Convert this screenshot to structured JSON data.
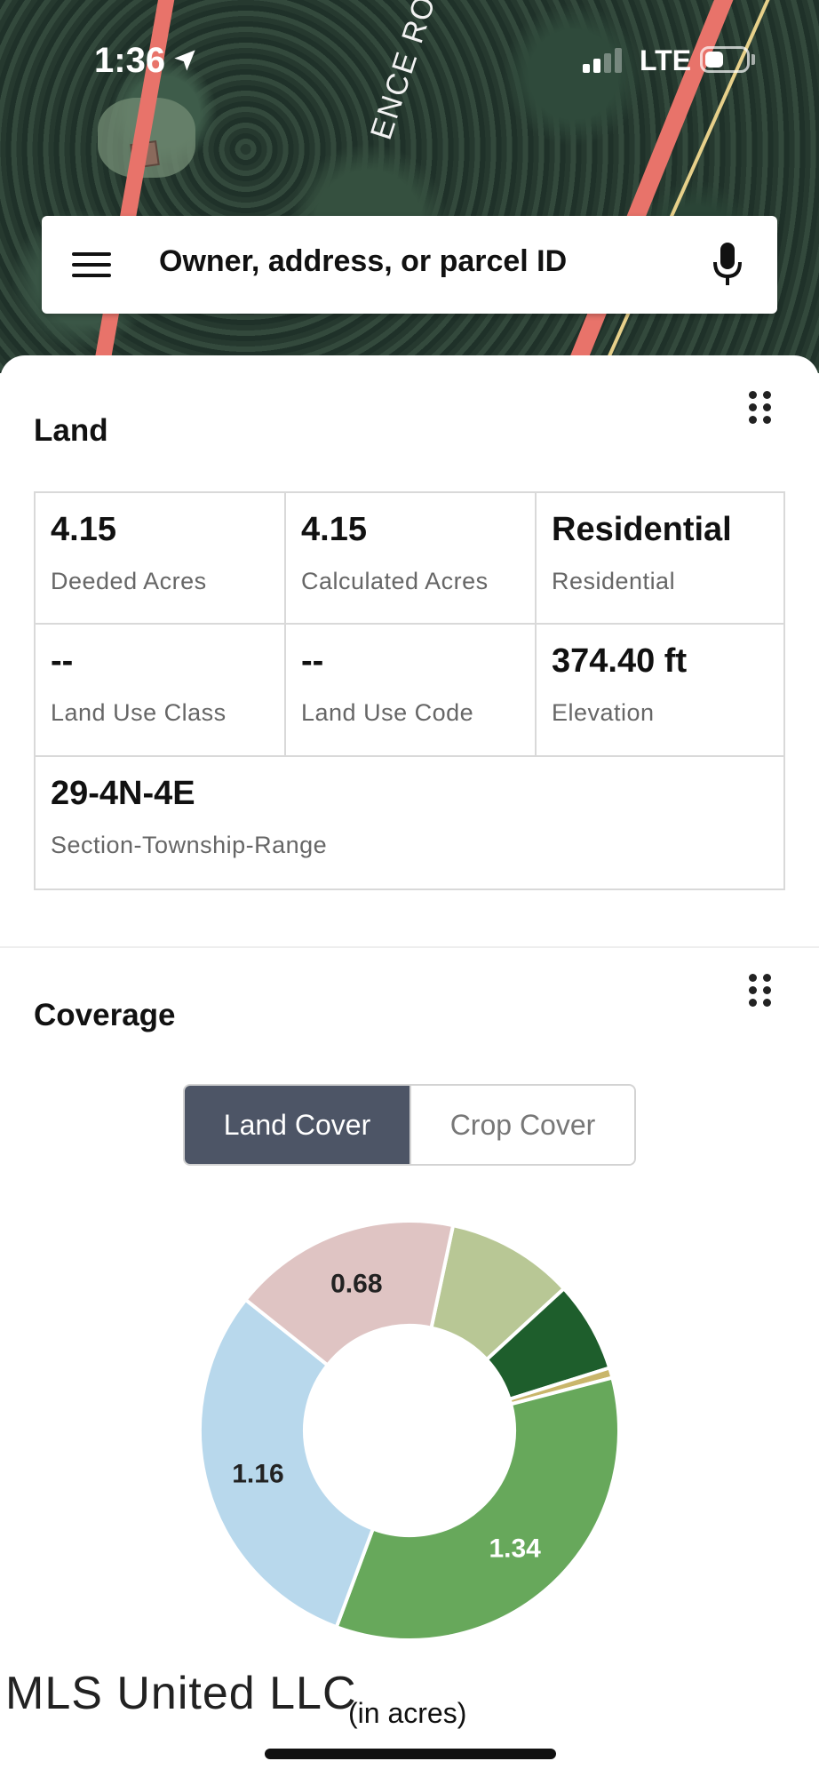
{
  "status_bar": {
    "time": "1:36",
    "network": "LTE"
  },
  "map": {
    "street_label": "ENCE ROBER"
  },
  "search": {
    "placeholder": "Owner, address, or parcel ID",
    "icons": [
      "menu-icon",
      "mic-icon"
    ]
  },
  "land": {
    "title": "Land",
    "cells": [
      {
        "value": "4.15",
        "label": "Deeded Acres"
      },
      {
        "value": "4.15",
        "label": "Calculated Acres"
      },
      {
        "value": "Residential",
        "label": "Residential"
      },
      {
        "value": "--",
        "label": "Land Use Class"
      },
      {
        "value": "--",
        "label": "Land Use Code"
      },
      {
        "value": "374.40 ft",
        "label": "Elevation"
      },
      {
        "value": "29-4N-4E",
        "label": "Section-Township-Range"
      }
    ]
  },
  "coverage": {
    "title": "Coverage",
    "tabs": [
      {
        "label": "Land Cover",
        "active": true
      },
      {
        "label": "Crop Cover",
        "active": false
      }
    ],
    "unit_label": "(in acres)"
  },
  "chart_data": {
    "type": "pie",
    "donut": true,
    "slices": [
      {
        "value": 0.38,
        "color": "#b8c795",
        "label": ""
      },
      {
        "value": 0.27,
        "color": "#1e5e2c",
        "label": ""
      },
      {
        "value": 0.03,
        "color": "#c9b66b",
        "label": ""
      },
      {
        "value": 1.34,
        "color": "#67a85b",
        "label": "1.34",
        "label_color": "#ffffff"
      },
      {
        "value": 1.16,
        "color": "#b8d8ec",
        "label": "1.16",
        "label_color": "#222222"
      },
      {
        "value": 0.68,
        "color": "#dfc4c3",
        "label": "0.68",
        "label_color": "#222222"
      }
    ]
  },
  "watermark": "MLS United LLC",
  "colors": {
    "segment_active": "#4d5566",
    "map_road": "#e8736a"
  }
}
